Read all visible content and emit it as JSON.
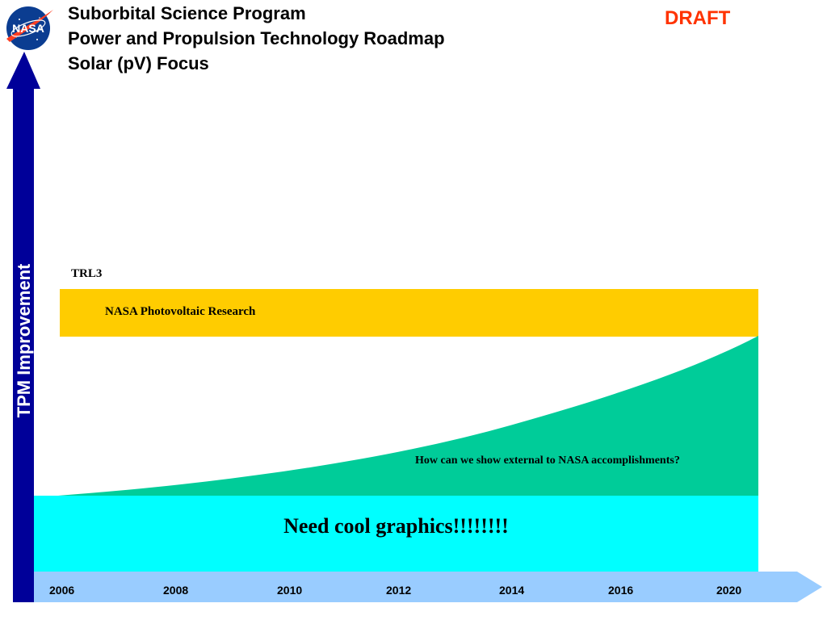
{
  "header": {
    "title_lines": [
      "Suborbital Science Program",
      "Power and Propulsion Technology Roadmap",
      "Solar (pV) Focus"
    ],
    "draft_label": "DRAFT",
    "logo_text": "NASA"
  },
  "axis": {
    "vertical_label": "TPM Improvement",
    "timeline_years": [
      "2006",
      "2008",
      "2010",
      "2012",
      "2014",
      "2016",
      "2020"
    ]
  },
  "roadmap": {
    "trl_label": "TRL3",
    "yellow_band_label": "NASA Photovoltaic Research",
    "green_area_label": "How can we show external to NASA accomplishments?",
    "cyan_band_label": "Need cool graphics!!!!!!!!"
  },
  "colors": {
    "draft": "#ff3300",
    "tpm_arrow": "#000099",
    "yellow_band": "#ffcc00",
    "green_area": "#00cc99",
    "cyan_band": "#00ffff",
    "timeline": "#99ccff"
  }
}
